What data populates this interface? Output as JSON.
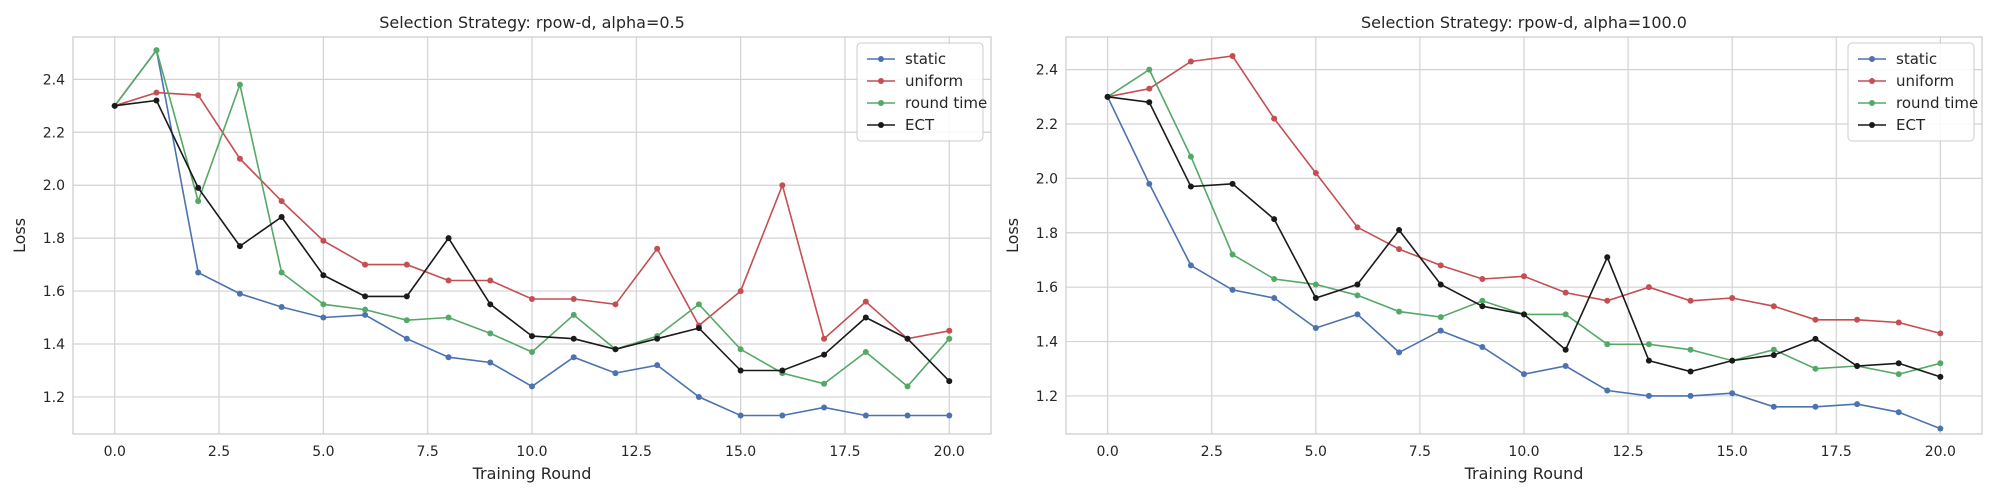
{
  "chart_data": [
    {
      "type": "line",
      "title": "Selection Strategy: rpow-d, alpha=0.5",
      "xlabel": "Training Round",
      "ylabel": "Loss",
      "xlim": [
        -1,
        21
      ],
      "ylim": [
        1.06,
        2.56
      ],
      "xticks": [
        0,
        2.5,
        5,
        7.5,
        10,
        12.5,
        15,
        17.5,
        20
      ],
      "xtick_labels": [
        "0.0",
        "2.5",
        "5.0",
        "7.5",
        "10.0",
        "12.5",
        "15.0",
        "17.5",
        "20.0"
      ],
      "yticks": [
        1.2,
        1.4,
        1.6,
        1.8,
        2.0,
        2.2,
        2.4
      ],
      "ytick_labels": [
        "1.2",
        "1.4",
        "1.6",
        "1.8",
        "2.0",
        "2.2",
        "2.4"
      ],
      "grid": true,
      "legend_position": "top-right",
      "x": [
        0,
        1,
        2,
        3,
        4,
        5,
        6,
        7,
        8,
        9,
        10,
        11,
        12,
        13,
        14,
        15,
        16,
        17,
        18,
        19,
        20
      ],
      "series": [
        {
          "name": "static",
          "color": "#4c72b0",
          "values": [
            2.3,
            2.51,
            1.67,
            1.59,
            1.54,
            1.5,
            1.51,
            1.42,
            1.35,
            1.33,
            1.24,
            1.35,
            1.29,
            1.32,
            1.2,
            1.13,
            1.13,
            1.16,
            1.13,
            1.13,
            1.13
          ]
        },
        {
          "name": "uniform",
          "color": "#c44e52",
          "values": [
            2.3,
            2.35,
            2.34,
            2.1,
            1.94,
            1.79,
            1.7,
            1.7,
            1.64,
            1.64,
            1.57,
            1.57,
            1.55,
            1.76,
            1.47,
            1.6,
            2.0,
            1.42,
            1.56,
            1.42,
            1.45
          ]
        },
        {
          "name": "round time",
          "color": "#55a868",
          "values": [
            2.3,
            2.51,
            1.94,
            2.38,
            1.67,
            1.55,
            1.53,
            1.49,
            1.5,
            1.44,
            1.37,
            1.51,
            1.38,
            1.43,
            1.55,
            1.38,
            1.29,
            1.25,
            1.37,
            1.24,
            1.42
          ]
        },
        {
          "name": "ECT",
          "color": "#1a1a1a",
          "values": [
            2.3,
            2.32,
            1.99,
            1.77,
            1.88,
            1.66,
            1.58,
            1.58,
            1.8,
            1.55,
            1.43,
            1.42,
            1.38,
            1.42,
            1.46,
            1.3,
            1.3,
            1.36,
            1.5,
            1.42,
            1.26
          ]
        }
      ]
    },
    {
      "type": "line",
      "title": "Selection Strategy: rpow-d, alpha=100.0",
      "xlabel": "Training Round",
      "ylabel": "Loss",
      "xlim": [
        -1,
        21
      ],
      "ylim": [
        1.06,
        2.52
      ],
      "xticks": [
        0,
        2.5,
        5,
        7.5,
        10,
        12.5,
        15,
        17.5,
        20
      ],
      "xtick_labels": [
        "0.0",
        "2.5",
        "5.0",
        "7.5",
        "10.0",
        "12.5",
        "15.0",
        "17.5",
        "20.0"
      ],
      "yticks": [
        1.2,
        1.4,
        1.6,
        1.8,
        2.0,
        2.2,
        2.4
      ],
      "ytick_labels": [
        "1.2",
        "1.4",
        "1.6",
        "1.8",
        "2.0",
        "2.2",
        "2.4"
      ],
      "grid": true,
      "legend_position": "top-right",
      "x": [
        0,
        1,
        2,
        3,
        4,
        5,
        6,
        7,
        8,
        9,
        10,
        11,
        12,
        13,
        14,
        15,
        16,
        17,
        18,
        19,
        20
      ],
      "series": [
        {
          "name": "static",
          "color": "#4c72b0",
          "values": [
            2.3,
            1.98,
            1.68,
            1.59,
            1.56,
            1.45,
            1.5,
            1.36,
            1.44,
            1.38,
            1.28,
            1.31,
            1.22,
            1.2,
            1.2,
            1.21,
            1.16,
            1.16,
            1.17,
            1.14,
            1.08
          ]
        },
        {
          "name": "uniform",
          "color": "#c44e52",
          "values": [
            2.3,
            2.33,
            2.43,
            2.45,
            2.22,
            2.02,
            1.82,
            1.74,
            1.68,
            1.63,
            1.64,
            1.58,
            1.55,
            1.6,
            1.55,
            1.56,
            1.53,
            1.48,
            1.48,
            1.47,
            1.43
          ]
        },
        {
          "name": "round time",
          "color": "#55a868",
          "values": [
            2.3,
            2.4,
            2.08,
            1.72,
            1.63,
            1.61,
            1.57,
            1.51,
            1.49,
            1.55,
            1.5,
            1.5,
            1.39,
            1.39,
            1.37,
            1.33,
            1.37,
            1.3,
            1.31,
            1.28,
            1.32
          ]
        },
        {
          "name": "ECT",
          "color": "#1a1a1a",
          "values": [
            2.3,
            2.28,
            1.97,
            1.98,
            1.85,
            1.56,
            1.61,
            1.81,
            1.61,
            1.53,
            1.5,
            1.37,
            1.71,
            1.33,
            1.29,
            1.33,
            1.35,
            1.41,
            1.31,
            1.32,
            1.27
          ]
        }
      ]
    }
  ]
}
